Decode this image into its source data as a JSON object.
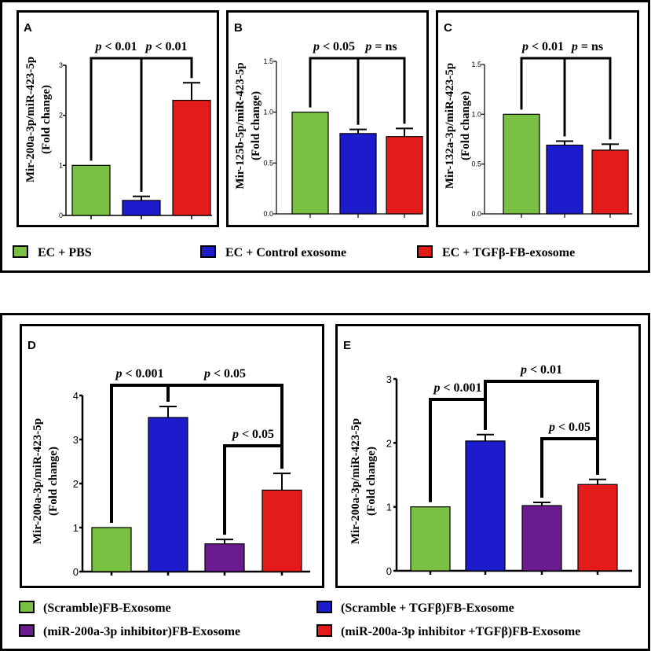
{
  "colors": {
    "green": "#7ac143",
    "blue": "#1c1ccc",
    "red": "#e41b1b",
    "purple": "#6a1b8e"
  },
  "top_legend": [
    {
      "label": "EC + PBS",
      "color": "#7ac143"
    },
    {
      "label": "EC + Control exosome",
      "color": "#1c1ccc"
    },
    {
      "label": "EC + TGFβ-FB-exosome",
      "color": "#e41b1b"
    }
  ],
  "bottom_legend": [
    {
      "label": "(Scramble)FB-Exosome",
      "color": "#7ac143"
    },
    {
      "label": "(Scramble + TGFβ)FB-Exosome",
      "color": "#1c1ccc"
    },
    {
      "label": "(miR-200a-3p inhibitor)FB-Exosome",
      "color": "#6a1b8e"
    },
    {
      "label": "(miR-200a-3p inhibitor +TGFβ)FB-Exosome",
      "color": "#e41b1b"
    }
  ],
  "chart_data": [
    {
      "panel": "A",
      "type": "bar",
      "ylabel_line1": "Mir-200a-3p/miR-423-5p",
      "ylabel_line2": "(Fold change)",
      "ylim": [
        0,
        3
      ],
      "ticks": [
        "0",
        "1",
        "2",
        "3"
      ],
      "series": [
        {
          "name": "EC + PBS",
          "value": 1.0,
          "error": 0.0,
          "color": "#7ac143"
        },
        {
          "name": "EC + Control exosome",
          "value": 0.3,
          "error": 0.08,
          "color": "#1c1ccc"
        },
        {
          "name": "EC + TGFβ-FB-exosome",
          "value": 2.3,
          "error": 0.35,
          "color": "#e41b1b"
        }
      ],
      "annotations": [
        {
          "from": 0,
          "to": 1,
          "prefix": "p",
          "text": " < 0.01"
        },
        {
          "from": 1,
          "to": 2,
          "prefix": "p",
          "text": " < 0.01"
        }
      ]
    },
    {
      "panel": "B",
      "type": "bar",
      "ylabel_line1": "Mir-125b-5p/miR-423-5p",
      "ylabel_line2": "(Fold change)",
      "ylim": [
        0,
        1.5
      ],
      "ticks": [
        "0.0",
        "0.5",
        "1.0",
        "1.5"
      ],
      "series": [
        {
          "name": "EC + PBS",
          "value": 1.0,
          "error": 0.0,
          "color": "#7ac143"
        },
        {
          "name": "EC + Control exosome",
          "value": 0.79,
          "error": 0.04,
          "color": "#1c1ccc"
        },
        {
          "name": "EC + TGFβ-FB-exosome",
          "value": 0.76,
          "error": 0.08,
          "color": "#e41b1b"
        }
      ],
      "annotations": [
        {
          "from": 0,
          "to": 1,
          "prefix": "p",
          "text": " < 0.05"
        },
        {
          "from": 1,
          "to": 2,
          "prefix": "p",
          "text": " = ns"
        }
      ]
    },
    {
      "panel": "C",
      "type": "bar",
      "ylabel_line1": "Mir-132a-3p/miR-423-5p",
      "ylabel_line2": "(Fold change)",
      "ylim": [
        0,
        1.5
      ],
      "ticks": [
        "0.0",
        "0.5",
        "1.0",
        "1.5"
      ],
      "series": [
        {
          "name": "EC + PBS",
          "value": 1.0,
          "error": 0.0,
          "color": "#7ac143"
        },
        {
          "name": "EC + Control exosome",
          "value": 0.69,
          "error": 0.04,
          "color": "#1c1ccc"
        },
        {
          "name": "EC + TGFβ-FB-exosome",
          "value": 0.64,
          "error": 0.06,
          "color": "#e41b1b"
        }
      ],
      "annotations": [
        {
          "from": 0,
          "to": 1,
          "prefix": "p",
          "text": " < 0.01"
        },
        {
          "from": 1,
          "to": 2,
          "prefix": "p",
          "text": " = ns"
        }
      ]
    },
    {
      "panel": "D",
      "type": "bar",
      "ylabel_line1": "Mir-200a-3p/miR-423-5p",
      "ylabel_line2": "(Fold change)",
      "ylim": [
        0,
        4
      ],
      "ticks": [
        "0",
        "1",
        "2",
        "3",
        "4"
      ],
      "series": [
        {
          "name": "(Scramble)FB-Exosome",
          "value": 1.0,
          "error": 0.0,
          "color": "#7ac143"
        },
        {
          "name": "(Scramble + TGFβ)FB-Exosome",
          "value": 3.5,
          "error": 0.25,
          "color": "#1c1ccc"
        },
        {
          "name": "(miR-200a-3p inhibitor)FB-Exosome",
          "value": 0.63,
          "error": 0.1,
          "color": "#6a1b8e"
        },
        {
          "name": "(miR-200a-3p inhibitor +TGFβ)FB-Exosome",
          "value": 1.85,
          "error": 0.38,
          "color": "#e41b1b"
        }
      ],
      "annotations": [
        {
          "from": 0,
          "to": 1,
          "prefix": "p",
          "text": " < 0.001"
        },
        {
          "from": 1,
          "to": 3,
          "prefix": "p",
          "text": " < 0.05"
        },
        {
          "from": 2,
          "to": 3,
          "prefix": "p",
          "text": " < 0.05"
        }
      ]
    },
    {
      "panel": "E",
      "type": "bar",
      "ylabel_line1": "Mir-200a-3p/miR-423-5p",
      "ylabel_line2": "(Fold change)",
      "ylim": [
        0,
        3
      ],
      "ticks": [
        "0",
        "1",
        "2",
        "3"
      ],
      "series": [
        {
          "name": "(Scramble)FB-Exosome",
          "value": 1.0,
          "error": 0.0,
          "color": "#7ac143"
        },
        {
          "name": "(Scramble + TGFβ)FB-Exosome",
          "value": 2.03,
          "error": 0.1,
          "color": "#1c1ccc"
        },
        {
          "name": "(miR-200a-3p inhibitor)FB-Exosome",
          "value": 1.02,
          "error": 0.05,
          "color": "#6a1b8e"
        },
        {
          "name": "(miR-200a-3p inhibitor +TGFβ)FB-Exosome",
          "value": 1.35,
          "error": 0.08,
          "color": "#e41b1b"
        }
      ],
      "annotations": [
        {
          "from": 0,
          "to": 1,
          "prefix": "p",
          "text": " < 0.001"
        },
        {
          "from": 1,
          "to": 3,
          "prefix": "p",
          "text": " < 0.01"
        },
        {
          "from": 2,
          "to": 3,
          "prefix": "p",
          "text": " < 0.05"
        }
      ]
    }
  ]
}
